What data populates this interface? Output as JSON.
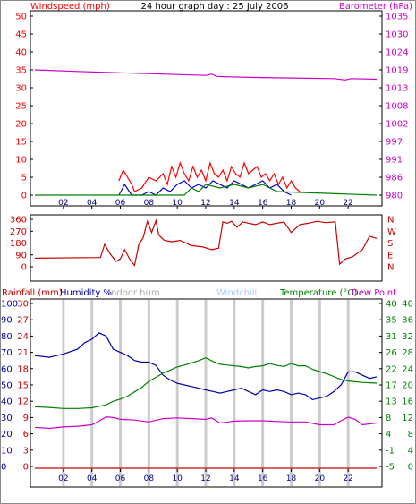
{
  "chart_data": [
    {
      "id": "wind",
      "type": "line",
      "title": "24 hour graph day : 25 July 2006",
      "left_axis_label": "Windspeed (mph)",
      "right_axis_label": "Barometer (hPa)",
      "x_ticks": [
        "02",
        "04",
        "06",
        "08",
        "10",
        "12",
        "14",
        "16",
        "18",
        "20",
        "22"
      ],
      "y_left_ticks": [
        "0",
        "5",
        "10",
        "15",
        "20",
        "25",
        "30",
        "35",
        "40",
        "45",
        "50"
      ],
      "y_right_ticks": [
        "980",
        "986",
        "991",
        "997",
        "1002",
        "1008",
        "1013",
        "1019",
        "1024",
        "1030",
        "1035"
      ],
      "ylim_left": [
        0,
        50
      ],
      "ylim_right": [
        980,
        1035
      ],
      "series": [
        {
          "key": "barometer",
          "color": "#cc00cc",
          "axis": "right",
          "x": [
            0,
            3,
            6,
            9,
            12,
            12.4,
            12.8,
            13.3,
            15,
            18,
            21,
            21.8,
            22.2,
            24
          ],
          "y": [
            1018.5,
            1018,
            1017.6,
            1017.2,
            1016.8,
            1017.2,
            1016.5,
            1016.4,
            1016.2,
            1016,
            1015.8,
            1015.4,
            1015.8,
            1015.6
          ]
        },
        {
          "key": "gust",
          "color": "#ff0000",
          "axis": "left",
          "x": [
            5.9,
            6.2,
            6.5,
            6.8,
            7.0,
            7.5,
            8.0,
            8.5,
            9.0,
            9.3,
            9.6,
            9.9,
            10.2,
            10.5,
            10.8,
            11.1,
            11.4,
            11.7,
            12.0,
            12.3,
            12.6,
            12.9,
            13.2,
            13.5,
            13.8,
            14.1,
            14.4,
            14.7,
            15.0,
            15.3,
            15.6,
            15.9,
            16.2,
            16.5,
            16.8,
            17.1,
            17.4,
            17.7,
            18.0,
            18.3,
            18.6
          ],
          "y": [
            4,
            7,
            5,
            3,
            1,
            2,
            5,
            4,
            6,
            3,
            8,
            5,
            9,
            6,
            4,
            8,
            5,
            7,
            4,
            9,
            6,
            5,
            7,
            4,
            8,
            6,
            5,
            9,
            6,
            7,
            8,
            5,
            6,
            4,
            6,
            3,
            5,
            2,
            4,
            2,
            1
          ]
        },
        {
          "key": "avg_wind",
          "color": "#0000cc",
          "axis": "left",
          "x": [
            5.9,
            6.3,
            6.8,
            7.5,
            8.0,
            8.5,
            9.0,
            9.5,
            10.0,
            10.5,
            11.0,
            11.5,
            12.0,
            12.5,
            13.0,
            13.5,
            14.0,
            14.5,
            15.0,
            15.5,
            16.0,
            16.5,
            17.0,
            17.5,
            18.0
          ],
          "y": [
            0,
            3,
            0,
            0,
            1,
            0,
            2,
            1,
            3,
            4,
            2,
            3,
            2,
            4,
            3,
            2,
            4,
            3,
            2,
            3,
            4,
            2,
            3,
            1,
            0
          ]
        },
        {
          "key": "wind_low",
          "color": "#008000",
          "axis": "left",
          "x": [
            0,
            10.5,
            11.0,
            11.5,
            12.0,
            13.0,
            14.0,
            15.0,
            16.0,
            17.0,
            24
          ],
          "y": [
            0,
            0,
            2,
            1,
            3,
            2,
            3,
            2,
            3,
            1,
            0
          ]
        }
      ]
    },
    {
      "id": "direction",
      "type": "line",
      "y_left_ticks": [
        "0",
        "90",
        "180",
        "270",
        "360"
      ],
      "y_right_ticks": [
        "N",
        "E",
        "S",
        "W",
        "N"
      ],
      "ylim": [
        0,
        360
      ],
      "series": [
        {
          "key": "wind_direction",
          "color": "#cc0000",
          "x": [
            0,
            4.6,
            4.9,
            5.3,
            5.7,
            6.0,
            6.3,
            6.7,
            7.0,
            7.3,
            7.6,
            7.9,
            8.2,
            8.5,
            8.7,
            9.1,
            9.6,
            10.2,
            11.0,
            11.8,
            12.4,
            12.9,
            13.2,
            13.5,
            13.8,
            14.2,
            14.6,
            15.0,
            15.5,
            16.0,
            16.5,
            17.0,
            17.5,
            18.0,
            18.6,
            19.2,
            19.8,
            20.4,
            21.1,
            21.4,
            21.8,
            22.3,
            23.0,
            23.5,
            24.0
          ],
          "y": [
            65,
            70,
            170,
            95,
            40,
            60,
            130,
            50,
            10,
            170,
            220,
            345,
            260,
            350,
            240,
            200,
            190,
            200,
            160,
            150,
            130,
            140,
            340,
            330,
            345,
            300,
            340,
            330,
            320,
            340,
            320,
            330,
            340,
            260,
            320,
            330,
            345,
            335,
            340,
            20,
            60,
            75,
            130,
            230,
            215
          ]
        }
      ]
    },
    {
      "id": "temp",
      "type": "line",
      "left_axis_label": "Rainfall (mm)",
      "humidity_label": "Humidity %",
      "indoor_label": "Indoor hum",
      "windchill_label": "Windchill",
      "temperature_label": "Temperature (°C)",
      "dewpoint_label": "Dew Point",
      "y_humidity_ticks": [
        "0",
        "10",
        "20",
        "30",
        "40",
        "50",
        "60",
        "70",
        "80",
        "90",
        "100"
      ],
      "y_rain_ticks": [
        "0",
        "3",
        "6",
        "9",
        "12",
        "15",
        "18",
        "21",
        "24",
        "27",
        "30"
      ],
      "y_temp_ticks": [
        "-5",
        "-1",
        "4",
        "8",
        "13",
        "17",
        "22",
        "26",
        "31",
        "35",
        "40"
      ],
      "y_temp2_ticks": [
        "0",
        "4",
        "8",
        "12",
        "16",
        "20",
        "24",
        "28",
        "32",
        "36",
        "40"
      ],
      "humidity_lim": [
        0,
        100
      ],
      "temp_lim": [
        -5,
        40
      ],
      "series": [
        {
          "key": "humidity",
          "color": "#0000aa",
          "axis": "humidity",
          "x": [
            0,
            1,
            2,
            3,
            3.5,
            4.0,
            4.5,
            5.0,
            5.5,
            6.0,
            6.5,
            7.0,
            7.5,
            8.0,
            8.5,
            9.0,
            9.5,
            10.0,
            10.5,
            11.0,
            11.5,
            12.0,
            12.5,
            13.0,
            13.5,
            14.0,
            14.5,
            15.0,
            15.5,
            16.0,
            16.5,
            17.0,
            17.5,
            18.0,
            18.5,
            19.0,
            19.5,
            20.0,
            20.5,
            21.0,
            21.5,
            22.0,
            22.5,
            23.0,
            23.5,
            24.0
          ],
          "y": [
            68,
            67,
            69,
            72,
            76,
            78,
            82,
            80,
            72,
            70,
            68,
            65,
            64,
            64,
            62,
            56,
            53,
            51,
            50,
            49,
            48,
            47,
            46,
            45,
            46,
            47,
            48,
            46,
            44,
            47,
            46,
            47,
            46,
            44,
            45,
            44,
            41,
            42,
            43,
            46,
            50,
            58,
            58,
            56,
            54,
            55
          ]
        },
        {
          "key": "temperature",
          "color": "#008000",
          "axis": "temp",
          "x": [
            0,
            1,
            2,
            3,
            4,
            5,
            5.5,
            6,
            6.5,
            7,
            7.5,
            8,
            8.5,
            9,
            9.5,
            10,
            10.5,
            11,
            11.5,
            12,
            12.5,
            13,
            13.5,
            14,
            14.5,
            15,
            15.5,
            16,
            16.5,
            17,
            17.5,
            18,
            18.5,
            19,
            19.5,
            20,
            20.5,
            21,
            21.5,
            22,
            22.5,
            23,
            23.5,
            24
          ],
          "y": [
            11.5,
            11.3,
            11,
            11,
            11.2,
            12,
            13,
            13.6,
            14.4,
            15.6,
            16.8,
            18.5,
            19.6,
            20.8,
            21.6,
            22.5,
            23,
            23.6,
            24.2,
            25,
            24,
            23.2,
            23,
            22.8,
            22.6,
            22.2,
            22.6,
            22.8,
            23.4,
            22.9,
            22.6,
            23.4,
            22.8,
            22.8,
            21.8,
            21.2,
            20.6,
            19.8,
            19,
            18.6,
            18.4,
            18.2,
            18.1,
            18
          ]
        },
        {
          "key": "dewpoint",
          "color": "#cc00cc",
          "axis": "temp",
          "x": [
            0,
            1,
            2,
            3,
            4,
            4.5,
            5,
            5.5,
            6,
            7,
            8,
            9,
            10,
            11,
            12,
            12.4,
            13,
            14,
            15,
            16,
            17,
            18,
            19,
            20,
            21,
            21.5,
            22,
            22.5,
            23,
            24
          ],
          "y": [
            5.8,
            5.5,
            5.9,
            6.1,
            6.5,
            7.5,
            8.7,
            8.5,
            8,
            7.8,
            7.3,
            8.2,
            8.4,
            8.2,
            8.0,
            8.4,
            7.0,
            7.5,
            7.6,
            7.6,
            7.4,
            7.3,
            7.3,
            6.5,
            6.5,
            7.6,
            8.6,
            8.0,
            6.5,
            7
          ]
        },
        {
          "key": "rainfall",
          "color": "#cc0000",
          "axis": "rain",
          "x": [
            0,
            24
          ],
          "y": [
            0,
            0
          ]
        }
      ]
    }
  ],
  "colors": {
    "wind_axis": "#ff0000",
    "baro_axis": "#cc00cc",
    "direction_axis": "#cc0000",
    "humidity_axis": "#0000aa",
    "temp_axis": "#008000",
    "dewpoint_axis": "#cc00cc",
    "indoor_hum": "#aaaaaa",
    "windchill": "#aaccff",
    "grid": "#cccccc"
  }
}
